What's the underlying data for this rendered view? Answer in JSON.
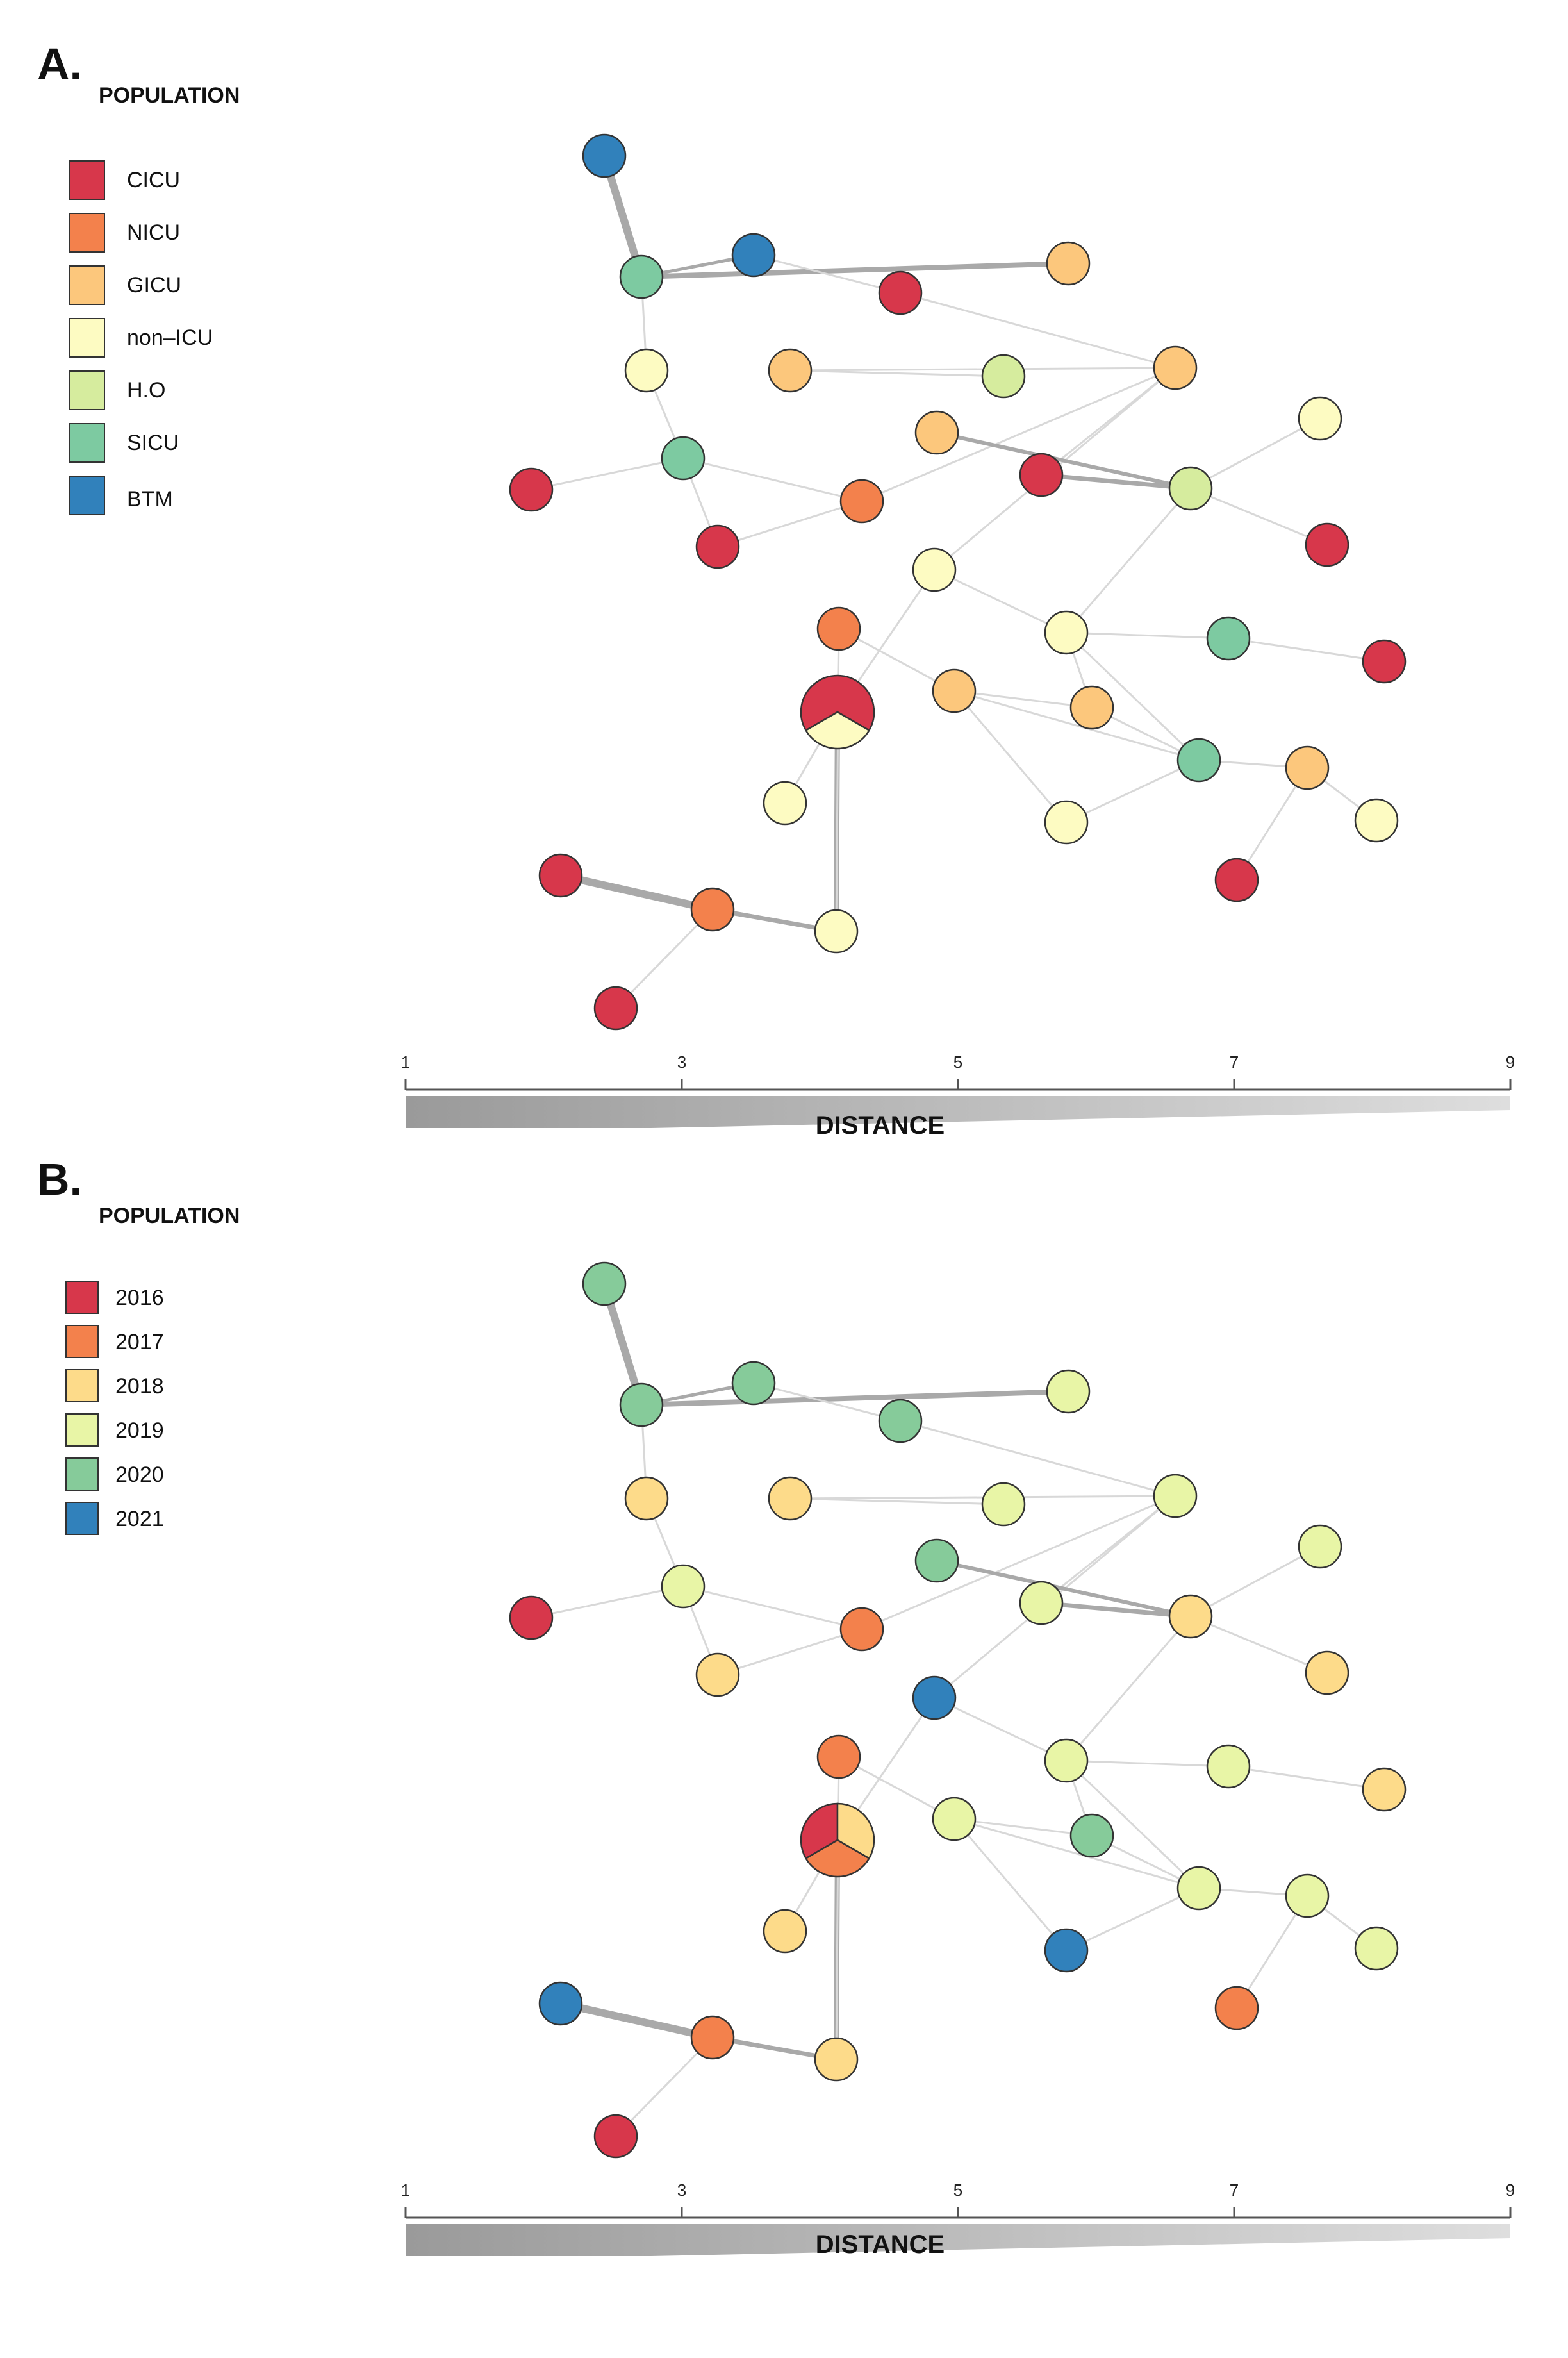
{
  "panels": [
    {
      "letter": "A.",
      "legend_title": "POPULATION",
      "legend": [
        {
          "label": "CICU",
          "color": "#d7374b"
        },
        {
          "label": "NICU",
          "color": "#f3814c"
        },
        {
          "label": "GICU",
          "color": "#fcc77c"
        },
        {
          "label": "non–ICU",
          "color": "#fdfbc2"
        },
        {
          "label": "H.O",
          "color": "#d6ec9e"
        },
        {
          "label": "SICU",
          "color": "#7dcaa1"
        },
        {
          "label": "BTM",
          "color": "#3181bb"
        }
      ],
      "node_categories": [
        6,
        5,
        6,
        0,
        2,
        3,
        2,
        4,
        2,
        5,
        0,
        2,
        4,
        0,
        1,
        3,
        3,
        0,
        0,
        3,
        5,
        2,
        0,
        1,
        2,
        5,
        3,
        2,
        3,
        3,
        0,
        0,
        1,
        3,
        0
      ],
      "pie_categories": [
        0,
        3
      ],
      "axis": {
        "ticks": [
          "1",
          "3",
          "5",
          "7",
          "9"
        ],
        "label": "DISTANCE"
      }
    },
    {
      "letter": "B.",
      "legend_title": "POPULATION",
      "legend": [
        {
          "label": "2016",
          "color": "#d7374b"
        },
        {
          "label": "2017",
          "color": "#f3814c"
        },
        {
          "label": "2018",
          "color": "#fddb8a"
        },
        {
          "label": "2019",
          "color": "#e8f5a6"
        },
        {
          "label": "2020",
          "color": "#86cb9a"
        },
        {
          "label": "2021",
          "color": "#3181bb"
        }
      ],
      "node_categories": [
        4,
        4,
        4,
        4,
        3,
        2,
        2,
        3,
        3,
        3,
        0,
        4,
        2,
        3,
        1,
        3,
        5,
        2,
        2,
        3,
        3,
        4,
        2,
        1,
        3,
        3,
        2,
        3,
        5,
        3,
        1,
        5,
        1,
        2,
        0
      ],
      "pie_categories": [
        0,
        2,
        1
      ],
      "axis": {
        "ticks": [
          "1",
          "3",
          "5",
          "7",
          "9"
        ],
        "label": "DISTANCE"
      }
    }
  ]
}
